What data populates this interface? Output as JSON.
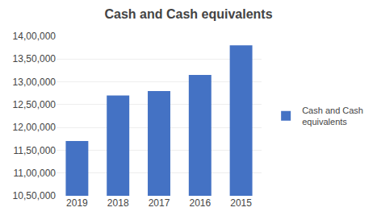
{
  "chart_data": {
    "type": "bar",
    "title": "Cash and Cash equivalents",
    "categories": [
      "2019",
      "2018",
      "2017",
      "2016",
      "2015"
    ],
    "series": [
      {
        "name": "Cash and Cash\nequivalents",
        "color": "#4472C4",
        "values": [
          1170000,
          1270000,
          1280000,
          1315000,
          1380000
        ]
      }
    ],
    "ylim": [
      1050000,
      1400000
    ],
    "yticks": [
      {
        "value": 1050000,
        "label": "10,50,000"
      },
      {
        "value": 1100000,
        "label": "11,00,000"
      },
      {
        "value": 1150000,
        "label": "11,50,000"
      },
      {
        "value": 1200000,
        "label": "12,00,000"
      },
      {
        "value": 1250000,
        "label": "12,50,000"
      },
      {
        "value": 1300000,
        "label": "13,00,000"
      },
      {
        "value": 1350000,
        "label": "13,50,000"
      },
      {
        "value": 1400000,
        "label": "14,00,000"
      }
    ],
    "grid": true,
    "legend": "right"
  }
}
